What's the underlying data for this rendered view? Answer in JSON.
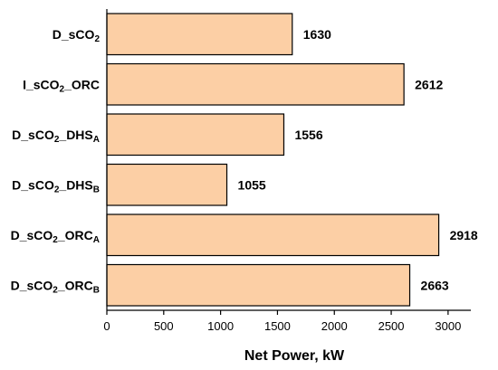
{
  "chart_data": {
    "type": "bar",
    "orientation": "horizontal",
    "categories": [
      {
        "main": "D_sCO",
        "sub": "2",
        "rest": "",
        "rest_sub": ""
      },
      {
        "main": "I_sCO",
        "sub": "2",
        "rest": "_ORC",
        "rest_sub": ""
      },
      {
        "main": "D_sCO",
        "sub": "2",
        "rest": "_DHS",
        "rest_sub": "A"
      },
      {
        "main": "D_sCO",
        "sub": "2",
        "rest": "_DHS",
        "rest_sub": "B"
      },
      {
        "main": "D_sCO",
        "sub": "2",
        "rest": "_ORC",
        "rest_sub": "A"
      },
      {
        "main": "D_sCO",
        "sub": "2",
        "rest": "_ORC",
        "rest_sub": "B"
      }
    ],
    "values": [
      1630,
      2612,
      1556,
      1055,
      2918,
      2663
    ],
    "value_labels": [
      "1630",
      "2612",
      "1556",
      "1055",
      "2918",
      "2663"
    ],
    "xlabel": "Net Power, kW",
    "xlim": [
      0,
      3200
    ],
    "xticks": [
      0,
      500,
      1000,
      1500,
      2000,
      2500,
      3000
    ],
    "xtick_labels": [
      "0",
      "500",
      "1000",
      "1500",
      "2000",
      "2500",
      "3000"
    ],
    "bar_color": "#FCCFA5",
    "edge_color": "#000000",
    "grid": false,
    "legend": "none"
  }
}
